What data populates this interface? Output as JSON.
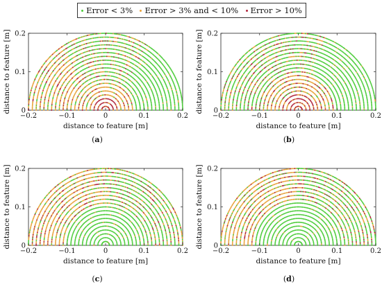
{
  "legend": {
    "items": [
      {
        "label": "Error < 3%",
        "color": "#4ccc3a"
      },
      {
        "label": "Error > 3% and < 10%",
        "color": "#e8a23a"
      },
      {
        "label": "Error > 10%",
        "color": "#b0253c"
      }
    ]
  },
  "chart_data": [
    {
      "type": "scatter",
      "panel": "(a)",
      "xlabel": "distance to feature [m]",
      "ylabel": "distance to feature [m]",
      "xlim": [
        -0.2,
        0.2
      ],
      "ylim": [
        0,
        0.2
      ],
      "xticks": [
        -0.2,
        -0.1,
        0,
        0.1,
        0.2
      ],
      "yticks": [
        0,
        0.1,
        0.2
      ],
      "ring_radii": [
        0.01,
        0.02,
        0.03,
        0.04,
        0.05,
        0.06,
        0.07,
        0.08,
        0.09,
        0.1,
        0.11,
        0.12,
        0.13,
        0.14,
        0.15,
        0.16,
        0.17,
        0.18,
        0.19,
        0.2
      ],
      "regions": [
        {
          "ring_from": 0.01,
          "ring_to": 0.03,
          "angle_from": 0,
          "angle_to": 180,
          "class": "high"
        },
        {
          "ring_from": 0.04,
          "ring_to": 0.07,
          "angle_from": 0,
          "angle_to": 180,
          "class": "mid"
        },
        {
          "ring_from": 0.08,
          "ring_to": 0.2,
          "angle_from": 0,
          "angle_to": 55,
          "class": "low"
        },
        {
          "ring_from": 0.08,
          "ring_to": 0.2,
          "angle_from": 55,
          "angle_to": 125,
          "class": "mixed"
        },
        {
          "ring_from": 0.08,
          "ring_to": 0.2,
          "angle_from": 125,
          "angle_to": 180,
          "class": "mid"
        }
      ]
    },
    {
      "type": "scatter",
      "panel": "(b)",
      "xlabel": "distance to feature [m]",
      "ylabel": "distance to feature [m]",
      "xlim": [
        -0.2,
        0.2
      ],
      "ylim": [
        0,
        0.2
      ],
      "xticks": [
        -0.2,
        -0.1,
        0,
        0.1,
        0.2
      ],
      "yticks": [
        0,
        0.1,
        0.2
      ],
      "ring_radii": [
        0.01,
        0.02,
        0.03,
        0.04,
        0.05,
        0.06,
        0.07,
        0.08,
        0.09,
        0.1,
        0.11,
        0.12,
        0.13,
        0.14,
        0.15,
        0.16,
        0.17,
        0.18,
        0.19,
        0.2
      ],
      "regions": [
        {
          "ring_from": 0.01,
          "ring_to": 0.04,
          "angle_from": 0,
          "angle_to": 180,
          "class": "high"
        },
        {
          "ring_from": 0.05,
          "ring_to": 0.09,
          "angle_from": 0,
          "angle_to": 180,
          "class": "mid"
        },
        {
          "ring_from": 0.1,
          "ring_to": 0.2,
          "angle_from": 0,
          "angle_to": 70,
          "class": "low"
        },
        {
          "ring_from": 0.1,
          "ring_to": 0.2,
          "angle_from": 70,
          "angle_to": 180,
          "class": "mixed"
        }
      ]
    },
    {
      "type": "scatter",
      "panel": "(c)",
      "xlabel": "distance to feature [m]",
      "ylabel": "distance to feature [m]",
      "xlim": [
        -0.2,
        0.2
      ],
      "ylim": [
        0,
        0.2
      ],
      "xticks": [
        -0.2,
        -0.1,
        0,
        0.1,
        0.2
      ],
      "yticks": [
        0,
        0.1,
        0.2
      ],
      "ring_radii": [
        0.01,
        0.02,
        0.03,
        0.04,
        0.05,
        0.06,
        0.07,
        0.08,
        0.09,
        0.1,
        0.11,
        0.12,
        0.13,
        0.14,
        0.15,
        0.16,
        0.17,
        0.18,
        0.19,
        0.2
      ],
      "regions": [
        {
          "ring_from": 0.01,
          "ring_to": 0.1,
          "angle_from": 0,
          "angle_to": 180,
          "class": "low"
        },
        {
          "ring_from": 0.11,
          "ring_to": 0.2,
          "angle_from": 0,
          "angle_to": 90,
          "class": "mixed"
        },
        {
          "ring_from": 0.11,
          "ring_to": 0.2,
          "angle_from": 90,
          "angle_to": 180,
          "class": "mid"
        }
      ]
    },
    {
      "type": "scatter",
      "panel": "(d)",
      "xlabel": "distance to feature [m]",
      "ylabel": "distance to feature [m]",
      "xlim": [
        -0.2,
        0.2
      ],
      "ylim": [
        0,
        0.2
      ],
      "xticks": [
        -0.2,
        -0.1,
        0,
        0.1,
        0.2
      ],
      "yticks": [
        0,
        0.1,
        0.2
      ],
      "ring_radii": [
        0.01,
        0.02,
        0.03,
        0.04,
        0.05,
        0.06,
        0.07,
        0.08,
        0.09,
        0.1,
        0.11,
        0.12,
        0.13,
        0.14,
        0.15,
        0.16,
        0.17,
        0.18,
        0.19,
        0.2
      ],
      "regions": [
        {
          "ring_from": 0.01,
          "ring_to": 0.11,
          "angle_from": 0,
          "angle_to": 180,
          "class": "low"
        },
        {
          "ring_from": 0.12,
          "ring_to": 0.2,
          "angle_from": 0,
          "angle_to": 90,
          "class": "mixed"
        },
        {
          "ring_from": 0.12,
          "ring_to": 0.2,
          "angle_from": 90,
          "angle_to": 180,
          "class": "mid"
        }
      ]
    }
  ]
}
